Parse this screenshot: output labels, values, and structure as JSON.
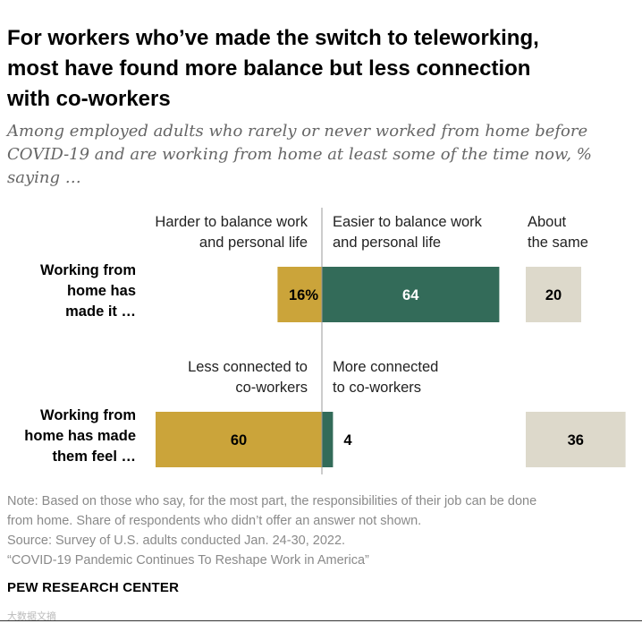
{
  "title_lines": [
    "For workers who’ve made the switch to teleworking,",
    "most have found more balance but less connection",
    "with co-workers"
  ],
  "subtitle_lines": [
    "Among employed adults who rarely or never worked from home before",
    "COVID-19 and are working from home at least some of the time now, %",
    "saying …"
  ],
  "colors": {
    "negative": "#cba43a",
    "positive": "#336b59",
    "same": "#ddd9cb",
    "divider": "#999999",
    "label_light": "#ffffff",
    "label_dark": "#000000"
  },
  "chart_data": {
    "type": "bar",
    "orientation": "horizontal-diverging",
    "rows": [
      {
        "label_lines": [
          "Working from",
          "home has",
          "made it …"
        ],
        "headers": {
          "negative": [
            "Harder to balance work",
            "and personal life"
          ],
          "positive": [
            "Easier to balance work",
            "and personal life"
          ],
          "same": [
            "About",
            "the same"
          ]
        },
        "negative": 16,
        "negative_label": "16%",
        "positive": 64,
        "positive_label": "64",
        "same": 20,
        "same_label": "20"
      },
      {
        "label_lines": [
          "Working from",
          "home has made",
          "them feel …"
        ],
        "headers": {
          "negative": [
            "Less connected to",
            "co-workers"
          ],
          "positive": [
            "More connected",
            "to co-workers"
          ],
          "same": []
        },
        "negative": 60,
        "negative_label": "60",
        "positive": 4,
        "positive_label": "4",
        "same": 36,
        "same_label": "36"
      }
    ]
  },
  "footer": {
    "note_lines": [
      "Note: Based on those who say, for the most part, the responsibilities of their job can be done",
      "from home. Share of respondents who didn’t offer an answer not shown."
    ],
    "source": "Source: Survey of U.S. adults conducted Jan. 24-30, 2022.",
    "report": "“COVID-19 Pandemic Continues To Reshape Work in America”"
  },
  "brand": "PEW RESEARCH CENTER",
  "watermark": "大数据文摘"
}
